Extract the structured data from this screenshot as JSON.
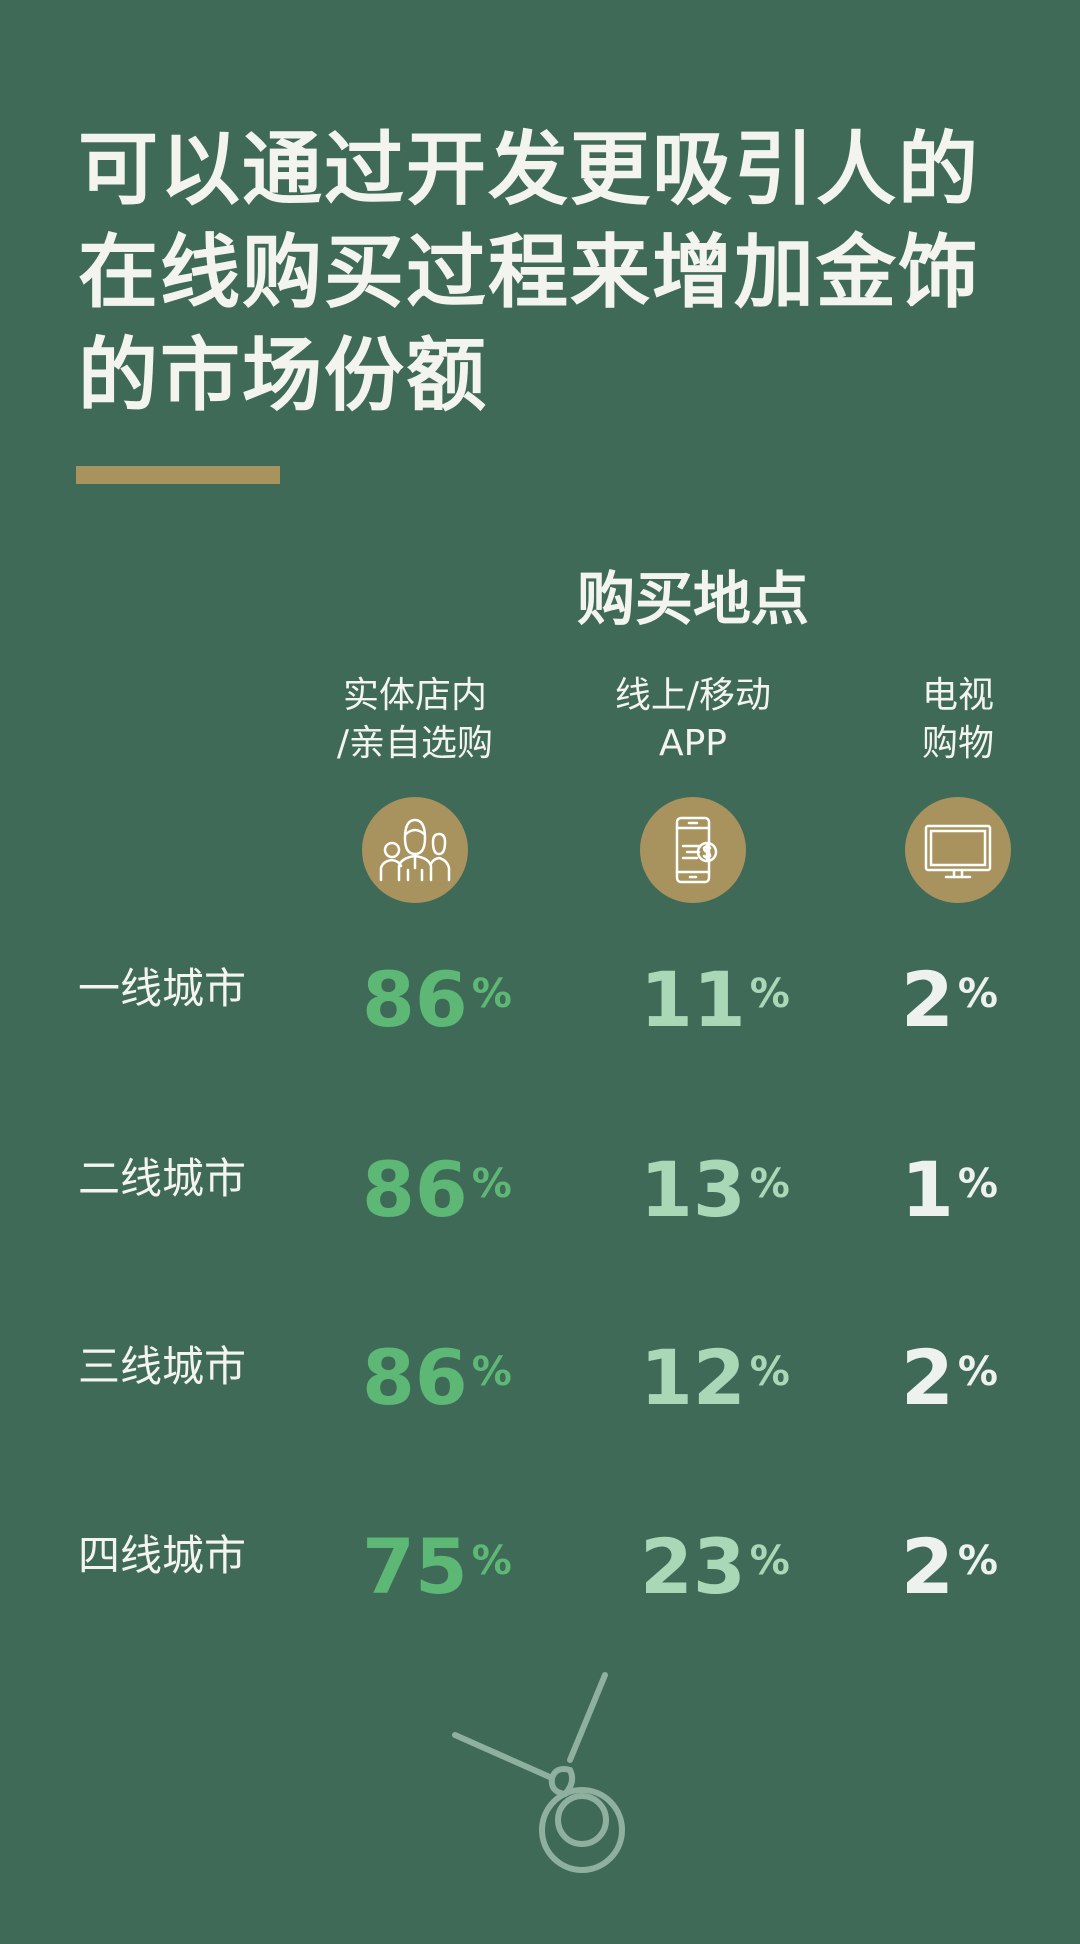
{
  "title": {
    "lines": [
      "可以通过开发更吸引人的",
      "在线购买过程来增加金饰",
      "的市场份额"
    ]
  },
  "section_title": "购买地点",
  "colors": {
    "background": "#3f6a58",
    "accent_gold": "#a8925e",
    "col1": "#5db775",
    "col2": "#a9d8b6",
    "col3": "#eef2ee"
  },
  "columns": [
    {
      "line1": "实体店内",
      "line2": "/亲自选购",
      "icon": "people-group-icon"
    },
    {
      "line1": "线上/移动",
      "line2": "APP",
      "icon": "phone-payment-icon"
    },
    {
      "line1": "电视",
      "line2": "购物",
      "icon": "tv-monitor-icon"
    }
  ],
  "chart_data": {
    "type": "table",
    "title": "购买地点",
    "columns": [
      "实体店内/亲自选购",
      "线上/移动APP",
      "电视购物"
    ],
    "rows": [
      {
        "label": "一线城市",
        "values": [
          "86",
          "11",
          "2"
        ]
      },
      {
        "label": "二线城市",
        "values": [
          "86",
          "13",
          "1"
        ]
      },
      {
        "label": "三线城市",
        "values": [
          "86",
          "12",
          "2"
        ]
      },
      {
        "label": "四线城市",
        "values": [
          "75",
          "23",
          "2"
        ]
      }
    ],
    "unit": "%"
  }
}
